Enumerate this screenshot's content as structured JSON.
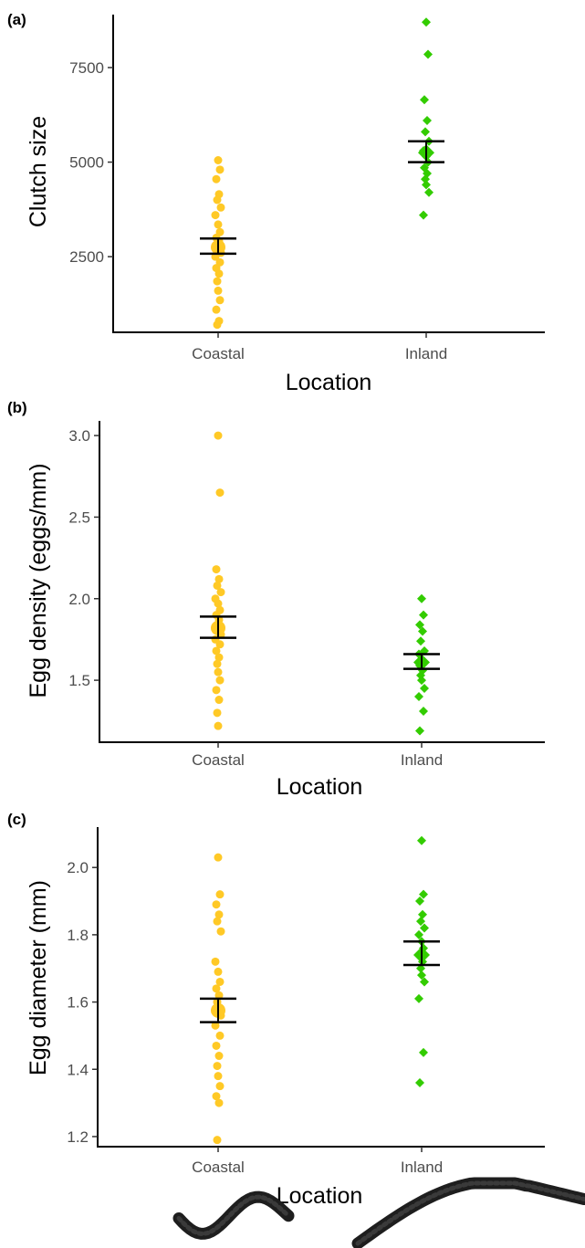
{
  "chart_data": [
    {
      "panel": "(a)",
      "type": "scatter",
      "xlabel": "Location",
      "ylabel": "Clutch size",
      "categories": [
        "Coastal",
        "Inland"
      ],
      "yticks": [
        2500,
        5000,
        7500
      ],
      "ylim": [
        500,
        8900
      ],
      "series": [
        {
          "name": "Coastal",
          "color": "#FFC926",
          "marker": "circle",
          "values": [
            5050,
            4800,
            4550,
            4150,
            4000,
            3800,
            3600,
            3350,
            3150,
            3000,
            2900,
            2800,
            2700,
            2600,
            2500,
            2350,
            2200,
            2050,
            1850,
            1600,
            1350,
            1100,
            800,
            700
          ],
          "mean": 2750,
          "se": [
            2580,
            2980
          ]
        },
        {
          "name": "Inland",
          "color": "#33CC00",
          "marker": "diamond",
          "values": [
            8700,
            7850,
            6650,
            6100,
            5800,
            5550,
            5300,
            5150,
            5000,
            4850,
            4700,
            4550,
            4400,
            4200,
            3600
          ],
          "mean": 5250,
          "se": [
            5000,
            5550
          ]
        }
      ]
    },
    {
      "panel": "(b)",
      "type": "scatter",
      "xlabel": "Location",
      "ylabel": "Egg density (eggs/mm)",
      "categories": [
        "Coastal",
        "Inland"
      ],
      "yticks": [
        "1.5",
        "2.0",
        "2.5",
        "3.0"
      ],
      "ylim": [
        1.12,
        3.09
      ],
      "series": [
        {
          "name": "Coastal",
          "color": "#FFC926",
          "marker": "circle",
          "values": [
            3.0,
            2.65,
            2.18,
            2.12,
            2.08,
            2.04,
            2.0,
            1.97,
            1.93,
            1.9,
            1.87,
            1.84,
            1.81,
            1.78,
            1.75,
            1.72,
            1.68,
            1.64,
            1.6,
            1.55,
            1.5,
            1.44,
            1.38,
            1.3,
            1.22
          ],
          "mean": 1.82,
          "se": [
            1.76,
            1.89
          ]
        },
        {
          "name": "Inland",
          "color": "#33CC00",
          "marker": "diamond",
          "values": [
            2.0,
            1.9,
            1.84,
            1.8,
            1.74,
            1.68,
            1.66,
            1.63,
            1.61,
            1.59,
            1.56,
            1.53,
            1.5,
            1.45,
            1.4,
            1.31,
            1.19
          ],
          "mean": 1.61,
          "se": [
            1.57,
            1.66
          ]
        }
      ]
    },
    {
      "panel": "(c)",
      "type": "scatter",
      "xlabel": "Location",
      "ylabel": "Egg diameter (mm)",
      "categories": [
        "Coastal",
        "Inland"
      ],
      "yticks": [
        "1.2",
        "1.4",
        "1.6",
        "1.8",
        "2.0"
      ],
      "ylim": [
        1.17,
        2.12
      ],
      "series": [
        {
          "name": "Coastal",
          "color": "#FFC926",
          "marker": "circle",
          "values": [
            2.03,
            1.92,
            1.89,
            1.86,
            1.84,
            1.81,
            1.72,
            1.69,
            1.66,
            1.64,
            1.62,
            1.6,
            1.58,
            1.56,
            1.53,
            1.5,
            1.47,
            1.44,
            1.41,
            1.38,
            1.35,
            1.32,
            1.3,
            1.19
          ],
          "mean": 1.575,
          "se": [
            1.54,
            1.61
          ]
        },
        {
          "name": "Inland",
          "color": "#33CC00",
          "marker": "diamond",
          "values": [
            2.08,
            1.92,
            1.9,
            1.86,
            1.84,
            1.82,
            1.8,
            1.78,
            1.76,
            1.74,
            1.72,
            1.7,
            1.68,
            1.66,
            1.61,
            1.45,
            1.36
          ],
          "mean": 1.74,
          "se": [
            1.71,
            1.78
          ]
        }
      ]
    }
  ],
  "photos": [
    {
      "name": "coastal-egg-strand"
    },
    {
      "name": "inland-egg-strand"
    }
  ],
  "style": {
    "error_bar_color": "#000000",
    "axis_color": "#000000",
    "mean_marker_size": "enlarged"
  }
}
